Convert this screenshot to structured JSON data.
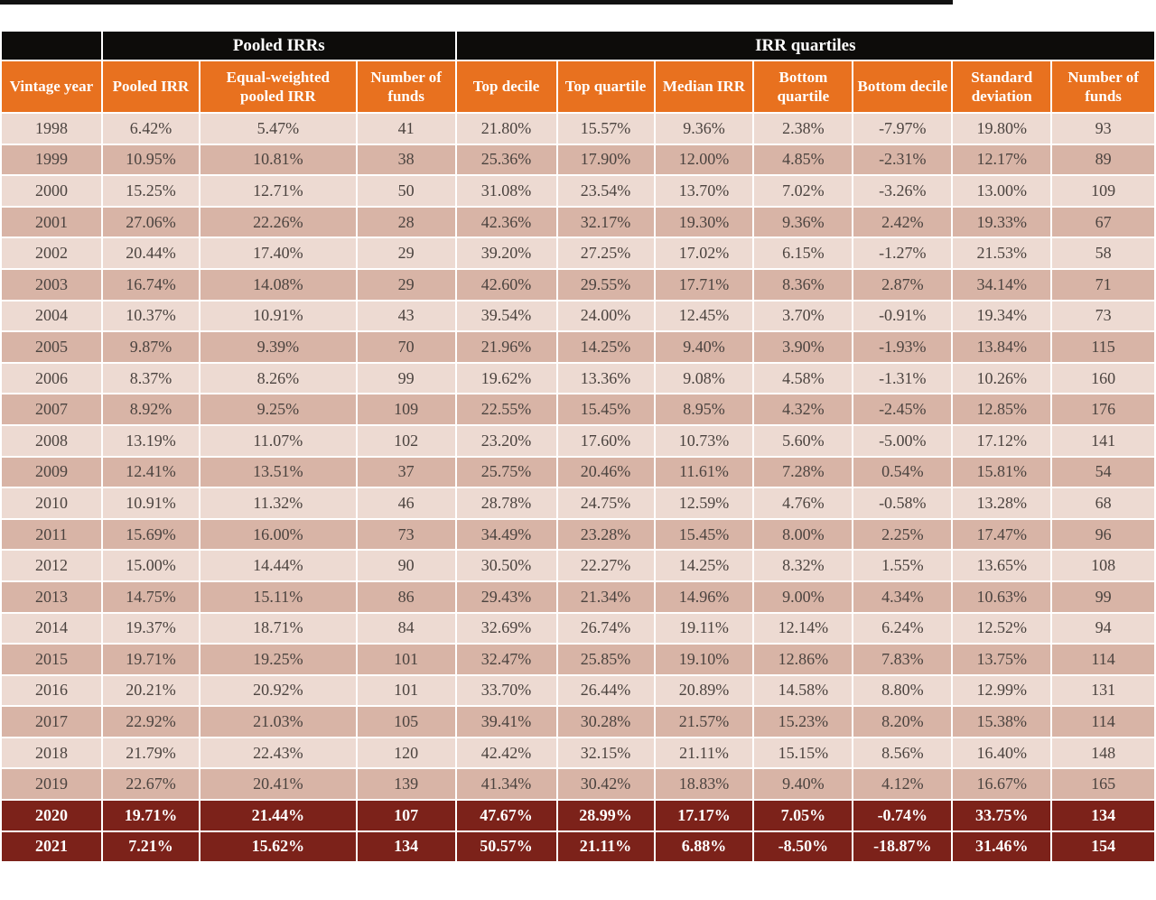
{
  "colors": {
    "page_bg": "#ffffff",
    "group_header_bg": "#0d0c0a",
    "column_header_bg": "#e8711f",
    "header_text": "#ffffff",
    "row_light_bg": "#eddad2",
    "row_dark_bg": "#d8b4a6",
    "row_text": "#4b433f",
    "highlight_row_bg": "#7c221a",
    "highlight_row_text": "#ffffff",
    "grid_line": "#ffffff",
    "top_rule": "#111111"
  },
  "chart_data": {
    "type": "table",
    "group_headers": [
      {
        "label": "",
        "colspan": 1
      },
      {
        "label": "Pooled IRRs",
        "colspan": 3
      },
      {
        "label": "IRR quartiles",
        "colspan": 7
      }
    ],
    "columns": [
      "Vintage year",
      "Pooled IRR",
      "Equal-weighted pooled IRR",
      "Number of funds",
      "Top decile",
      "Top quartile",
      "Median IRR",
      "Bottom quartile",
      "Bottom decile",
      "Standard deviation",
      "Number of funds"
    ],
    "rows": [
      [
        "1998",
        "6.42%",
        "5.47%",
        "41",
        "21.80%",
        "15.57%",
        "9.36%",
        "2.38%",
        "-7.97%",
        "19.80%",
        "93"
      ],
      [
        "1999",
        "10.95%",
        "10.81%",
        "38",
        "25.36%",
        "17.90%",
        "12.00%",
        "4.85%",
        "-2.31%",
        "12.17%",
        "89"
      ],
      [
        "2000",
        "15.25%",
        "12.71%",
        "50",
        "31.08%",
        "23.54%",
        "13.70%",
        "7.02%",
        "-3.26%",
        "13.00%",
        "109"
      ],
      [
        "2001",
        "27.06%",
        "22.26%",
        "28",
        "42.36%",
        "32.17%",
        "19.30%",
        "9.36%",
        "2.42%",
        "19.33%",
        "67"
      ],
      [
        "2002",
        "20.44%",
        "17.40%",
        "29",
        "39.20%",
        "27.25%",
        "17.02%",
        "6.15%",
        "-1.27%",
        "21.53%",
        "58"
      ],
      [
        "2003",
        "16.74%",
        "14.08%",
        "29",
        "42.60%",
        "29.55%",
        "17.71%",
        "8.36%",
        "2.87%",
        "34.14%",
        "71"
      ],
      [
        "2004",
        "10.37%",
        "10.91%",
        "43",
        "39.54%",
        "24.00%",
        "12.45%",
        "3.70%",
        "-0.91%",
        "19.34%",
        "73"
      ],
      [
        "2005",
        "9.87%",
        "9.39%",
        "70",
        "21.96%",
        "14.25%",
        "9.40%",
        "3.90%",
        "-1.93%",
        "13.84%",
        "115"
      ],
      [
        "2006",
        "8.37%",
        "8.26%",
        "99",
        "19.62%",
        "13.36%",
        "9.08%",
        "4.58%",
        "-1.31%",
        "10.26%",
        "160"
      ],
      [
        "2007",
        "8.92%",
        "9.25%",
        "109",
        "22.55%",
        "15.45%",
        "8.95%",
        "4.32%",
        "-2.45%",
        "12.85%",
        "176"
      ],
      [
        "2008",
        "13.19%",
        "11.07%",
        "102",
        "23.20%",
        "17.60%",
        "10.73%",
        "5.60%",
        "-5.00%",
        "17.12%",
        "141"
      ],
      [
        "2009",
        "12.41%",
        "13.51%",
        "37",
        "25.75%",
        "20.46%",
        "11.61%",
        "7.28%",
        "0.54%",
        "15.81%",
        "54"
      ],
      [
        "2010",
        "10.91%",
        "11.32%",
        "46",
        "28.78%",
        "24.75%",
        "12.59%",
        "4.76%",
        "-0.58%",
        "13.28%",
        "68"
      ],
      [
        "2011",
        "15.69%",
        "16.00%",
        "73",
        "34.49%",
        "23.28%",
        "15.45%",
        "8.00%",
        "2.25%",
        "17.47%",
        "96"
      ],
      [
        "2012",
        "15.00%",
        "14.44%",
        "90",
        "30.50%",
        "22.27%",
        "14.25%",
        "8.32%",
        "1.55%",
        "13.65%",
        "108"
      ],
      [
        "2013",
        "14.75%",
        "15.11%",
        "86",
        "29.43%",
        "21.34%",
        "14.96%",
        "9.00%",
        "4.34%",
        "10.63%",
        "99"
      ],
      [
        "2014",
        "19.37%",
        "18.71%",
        "84",
        "32.69%",
        "26.74%",
        "19.11%",
        "12.14%",
        "6.24%",
        "12.52%",
        "94"
      ],
      [
        "2015",
        "19.71%",
        "19.25%",
        "101",
        "32.47%",
        "25.85%",
        "19.10%",
        "12.86%",
        "7.83%",
        "13.75%",
        "114"
      ],
      [
        "2016",
        "20.21%",
        "20.92%",
        "101",
        "33.70%",
        "26.44%",
        "20.89%",
        "14.58%",
        "8.80%",
        "12.99%",
        "131"
      ],
      [
        "2017",
        "22.92%",
        "21.03%",
        "105",
        "39.41%",
        "30.28%",
        "21.57%",
        "15.23%",
        "8.20%",
        "15.38%",
        "114"
      ],
      [
        "2018",
        "21.79%",
        "22.43%",
        "120",
        "42.42%",
        "32.15%",
        "21.11%",
        "15.15%",
        "8.56%",
        "16.40%",
        "148"
      ],
      [
        "2019",
        "22.67%",
        "20.41%",
        "139",
        "41.34%",
        "30.42%",
        "18.83%",
        "9.40%",
        "4.12%",
        "16.67%",
        "165"
      ],
      [
        "2020",
        "19.71%",
        "21.44%",
        "107",
        "47.67%",
        "28.99%",
        "17.17%",
        "7.05%",
        "-0.74%",
        "33.75%",
        "134"
      ],
      [
        "2021",
        "7.21%",
        "15.62%",
        "134",
        "50.57%",
        "21.11%",
        "6.88%",
        "-8.50%",
        "-18.87%",
        "31.46%",
        "154"
      ]
    ],
    "highlight_rows": [
      "2020",
      "2021"
    ]
  }
}
